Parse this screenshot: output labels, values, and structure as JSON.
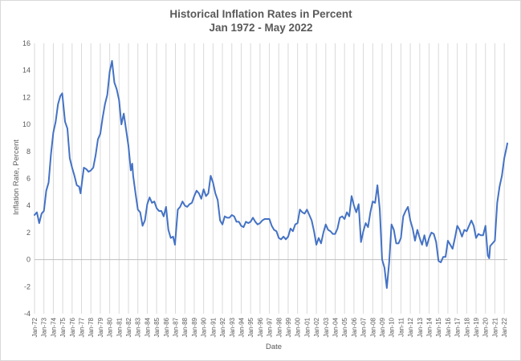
{
  "chart_data": {
    "type": "line",
    "title": "Historical Inflation Rates in Percent",
    "subtitle": "Jan 1972 - May 2022",
    "xlabel": "Date",
    "ylabel": "Inflation Rate, Percent",
    "ylim": [
      -4,
      16
    ],
    "yticks": [
      -4,
      -2,
      0,
      2,
      4,
      6,
      8,
      10,
      12,
      14,
      16
    ],
    "xlim": [
      1972.0,
      2022.33
    ],
    "xtick_labels": [
      "Jan-72",
      "Jan-73",
      "Jan-74",
      "Jan-75",
      "Jan-76",
      "Jan-77",
      "Jan-78",
      "Jan-79",
      "Jan-80",
      "Jan-81",
      "Jan-82",
      "Jan-83",
      "Jan-84",
      "Jan-85",
      "Jan-86",
      "Jan-87",
      "Jan-88",
      "Jan-89",
      "Jan-90",
      "Jan-91",
      "Jan-92",
      "Jan-93",
      "Jan-94",
      "Jan-95",
      "Jan-96",
      "Jan-97",
      "Jan-98",
      "Jan-99",
      "Jan-00",
      "Jan-01",
      "Jan-02",
      "Jan-03",
      "Jan-04",
      "Jan-05",
      "Jan-06",
      "Jan-07",
      "Jan-08",
      "Jan-09",
      "Jan-10",
      "Jan-11",
      "Jan-12",
      "Jan-13",
      "Jan-14",
      "Jan-15",
      "Jan-16",
      "Jan-17",
      "Jan-18",
      "Jan-19",
      "Jan-20",
      "Jan-21",
      "Jan-22"
    ],
    "grid": "vertical",
    "line_color": "#4472c4",
    "series": [
      {
        "name": "Inflation Rate",
        "points": [
          [
            1972.0,
            3.3
          ],
          [
            1972.25,
            3.5
          ],
          [
            1972.5,
            2.7
          ],
          [
            1972.75,
            3.4
          ],
          [
            1973.0,
            3.6
          ],
          [
            1973.25,
            5.1
          ],
          [
            1973.5,
            5.7
          ],
          [
            1973.75,
            7.8
          ],
          [
            1974.0,
            9.4
          ],
          [
            1974.25,
            10.2
          ],
          [
            1974.5,
            11.5
          ],
          [
            1974.75,
            12.1
          ],
          [
            1974.95,
            12.3
          ],
          [
            1975.25,
            10.2
          ],
          [
            1975.5,
            9.7
          ],
          [
            1975.75,
            7.5
          ],
          [
            1976.0,
            6.8
          ],
          [
            1976.25,
            6.2
          ],
          [
            1976.5,
            5.5
          ],
          [
            1976.75,
            5.4
          ],
          [
            1976.9,
            4.9
          ],
          [
            1977.25,
            6.8
          ],
          [
            1977.5,
            6.7
          ],
          [
            1977.75,
            6.5
          ],
          [
            1978.0,
            6.6
          ],
          [
            1978.25,
            6.8
          ],
          [
            1978.5,
            7.7
          ],
          [
            1978.75,
            8.9
          ],
          [
            1979.0,
            9.3
          ],
          [
            1979.25,
            10.5
          ],
          [
            1979.5,
            11.5
          ],
          [
            1979.75,
            12.2
          ],
          [
            1980.0,
            13.9
          ],
          [
            1980.25,
            14.7
          ],
          [
            1980.5,
            13.1
          ],
          [
            1980.75,
            12.6
          ],
          [
            1981.0,
            11.8
          ],
          [
            1981.25,
            10.0
          ],
          [
            1981.5,
            10.8
          ],
          [
            1981.75,
            9.6
          ],
          [
            1982.0,
            8.4
          ],
          [
            1982.25,
            6.6
          ],
          [
            1982.4,
            7.1
          ],
          [
            1982.5,
            6.2
          ],
          [
            1982.75,
            4.9
          ],
          [
            1983.0,
            3.7
          ],
          [
            1983.25,
            3.5
          ],
          [
            1983.5,
            2.5
          ],
          [
            1983.75,
            2.9
          ],
          [
            1984.0,
            4.1
          ],
          [
            1984.25,
            4.6
          ],
          [
            1984.5,
            4.2
          ],
          [
            1984.75,
            4.3
          ],
          [
            1985.0,
            3.8
          ],
          [
            1985.25,
            3.6
          ],
          [
            1985.5,
            3.6
          ],
          [
            1985.75,
            3.2
          ],
          [
            1986.0,
            3.9
          ],
          [
            1986.25,
            2.2
          ],
          [
            1986.5,
            1.6
          ],
          [
            1986.75,
            1.7
          ],
          [
            1986.95,
            1.1
          ],
          [
            1987.25,
            3.7
          ],
          [
            1987.5,
            3.9
          ],
          [
            1987.75,
            4.3
          ],
          [
            1988.0,
            4.0
          ],
          [
            1988.25,
            3.9
          ],
          [
            1988.5,
            4.1
          ],
          [
            1988.75,
            4.2
          ],
          [
            1989.0,
            4.7
          ],
          [
            1989.25,
            5.1
          ],
          [
            1989.5,
            4.9
          ],
          [
            1989.75,
            4.5
          ],
          [
            1990.0,
            5.2
          ],
          [
            1990.25,
            4.7
          ],
          [
            1990.5,
            4.9
          ],
          [
            1990.75,
            6.2
          ],
          [
            1991.0,
            5.7
          ],
          [
            1991.25,
            4.9
          ],
          [
            1991.5,
            4.4
          ],
          [
            1991.75,
            2.9
          ],
          [
            1992.0,
            2.6
          ],
          [
            1992.25,
            3.2
          ],
          [
            1992.5,
            3.1
          ],
          [
            1992.75,
            3.1
          ],
          [
            1993.0,
            3.3
          ],
          [
            1993.25,
            3.2
          ],
          [
            1993.5,
            2.8
          ],
          [
            1993.75,
            2.8
          ],
          [
            1994.0,
            2.5
          ],
          [
            1994.25,
            2.4
          ],
          [
            1994.5,
            2.8
          ],
          [
            1994.75,
            2.7
          ],
          [
            1995.0,
            2.8
          ],
          [
            1995.25,
            3.1
          ],
          [
            1995.5,
            2.8
          ],
          [
            1995.75,
            2.6
          ],
          [
            1996.0,
            2.7
          ],
          [
            1996.25,
            2.9
          ],
          [
            1996.5,
            3.0
          ],
          [
            1996.75,
            3.0
          ],
          [
            1997.0,
            3.0
          ],
          [
            1997.25,
            2.5
          ],
          [
            1997.5,
            2.2
          ],
          [
            1997.75,
            2.1
          ],
          [
            1998.0,
            1.6
          ],
          [
            1998.25,
            1.5
          ],
          [
            1998.5,
            1.7
          ],
          [
            1998.75,
            1.5
          ],
          [
            1999.0,
            1.7
          ],
          [
            1999.25,
            2.3
          ],
          [
            1999.5,
            2.1
          ],
          [
            1999.75,
            2.6
          ],
          [
            2000.0,
            2.7
          ],
          [
            2000.25,
            3.7
          ],
          [
            2000.5,
            3.5
          ],
          [
            2000.75,
            3.4
          ],
          [
            2001.0,
            3.7
          ],
          [
            2001.25,
            3.3
          ],
          [
            2001.5,
            2.9
          ],
          [
            2001.75,
            2.1
          ],
          [
            2002.0,
            1.1
          ],
          [
            2002.25,
            1.6
          ],
          [
            2002.5,
            1.2
          ],
          [
            2002.75,
            2.0
          ],
          [
            2003.0,
            2.6
          ],
          [
            2003.25,
            2.2
          ],
          [
            2003.5,
            2.1
          ],
          [
            2003.75,
            1.9
          ],
          [
            2004.0,
            1.9
          ],
          [
            2004.25,
            2.3
          ],
          [
            2004.5,
            3.1
          ],
          [
            2004.75,
            3.2
          ],
          [
            2005.0,
            3.0
          ],
          [
            2005.25,
            3.5
          ],
          [
            2005.5,
            3.2
          ],
          [
            2005.75,
            4.7
          ],
          [
            2006.0,
            4.0
          ],
          [
            2006.25,
            3.5
          ],
          [
            2006.5,
            4.1
          ],
          [
            2006.75,
            1.3
          ],
          [
            2007.0,
            2.1
          ],
          [
            2007.25,
            2.7
          ],
          [
            2007.5,
            2.4
          ],
          [
            2007.75,
            3.5
          ],
          [
            2008.0,
            4.3
          ],
          [
            2008.25,
            4.2
          ],
          [
            2008.5,
            5.5
          ],
          [
            2008.75,
            3.7
          ],
          [
            2009.0,
            0.0
          ],
          [
            2009.25,
            -0.6
          ],
          [
            2009.5,
            -2.1
          ],
          [
            2009.75,
            -0.2
          ],
          [
            2010.0,
            2.6
          ],
          [
            2010.25,
            2.2
          ],
          [
            2010.5,
            1.2
          ],
          [
            2010.75,
            1.2
          ],
          [
            2011.0,
            1.6
          ],
          [
            2011.25,
            3.2
          ],
          [
            2011.5,
            3.6
          ],
          [
            2011.75,
            3.9
          ],
          [
            2012.0,
            2.9
          ],
          [
            2012.25,
            2.3
          ],
          [
            2012.5,
            1.4
          ],
          [
            2012.75,
            2.2
          ],
          [
            2013.0,
            1.6
          ],
          [
            2013.25,
            1.1
          ],
          [
            2013.5,
            1.8
          ],
          [
            2013.75,
            1.0
          ],
          [
            2014.0,
            1.6
          ],
          [
            2014.25,
            2.0
          ],
          [
            2014.5,
            1.9
          ],
          [
            2014.75,
            1.3
          ],
          [
            2015.0,
            -0.1
          ],
          [
            2015.25,
            -0.2
          ],
          [
            2015.5,
            0.2
          ],
          [
            2015.75,
            0.2
          ],
          [
            2016.0,
            1.4
          ],
          [
            2016.25,
            1.1
          ],
          [
            2016.5,
            0.8
          ],
          [
            2016.75,
            1.6
          ],
          [
            2017.0,
            2.5
          ],
          [
            2017.25,
            2.2
          ],
          [
            2017.5,
            1.7
          ],
          [
            2017.75,
            2.2
          ],
          [
            2018.0,
            2.1
          ],
          [
            2018.25,
            2.5
          ],
          [
            2018.5,
            2.9
          ],
          [
            2018.75,
            2.5
          ],
          [
            2019.0,
            1.6
          ],
          [
            2019.25,
            1.9
          ],
          [
            2019.5,
            1.8
          ],
          [
            2019.75,
            1.8
          ],
          [
            2020.0,
            2.5
          ],
          [
            2020.25,
            0.3
          ],
          [
            2020.4,
            0.1
          ],
          [
            2020.5,
            1.0
          ],
          [
            2020.75,
            1.2
          ],
          [
            2021.0,
            1.4
          ],
          [
            2021.25,
            4.2
          ],
          [
            2021.5,
            5.4
          ],
          [
            2021.75,
            6.2
          ],
          [
            2022.0,
            7.5
          ],
          [
            2022.25,
            8.3
          ],
          [
            2022.33,
            8.6
          ]
        ]
      }
    ]
  }
}
